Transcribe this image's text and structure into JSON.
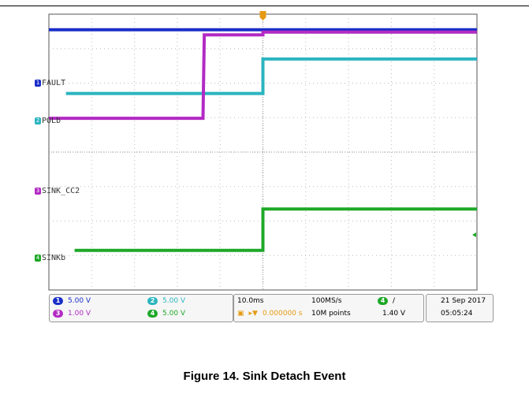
{
  "chart_data": {
    "type": "line",
    "title": "",
    "xlabel": "",
    "ylabel": "",
    "xlim": [
      0,
      10
    ],
    "ylim": [
      0,
      8
    ],
    "grid": true,
    "trigger_x": 5,
    "series": [
      {
        "name": "FAULT",
        "channel": "1",
        "color": "#1a2ec8",
        "points": [
          [
            0,
            7.55
          ],
          [
            10,
            7.55
          ]
        ]
      },
      {
        "name": "POL",
        "channel": "2",
        "color": "#2bb5c0",
        "points": [
          [
            0.4,
            5.7
          ],
          [
            5,
            5.7
          ],
          [
            5,
            6.7
          ],
          [
            10,
            6.7
          ]
        ]
      },
      {
        "name": "SINK_CC2",
        "channel": "3",
        "color": "#b22ac4",
        "points": [
          [
            0,
            4.98
          ],
          [
            3.6,
            4.98
          ],
          [
            3.63,
            7.4
          ],
          [
            5,
            7.4
          ],
          [
            5,
            7.48
          ],
          [
            10,
            7.48
          ]
        ]
      },
      {
        "name": "SINK",
        "channel": "4",
        "color": "#1ea828",
        "points": [
          [
            0.6,
            1.15
          ],
          [
            5,
            1.15
          ],
          [
            5,
            2.35
          ],
          [
            10,
            2.35
          ]
        ]
      }
    ],
    "channel_labels": [
      {
        "name": "FAULT",
        "text": "FAULT"
      },
      {
        "name": "POL",
        "text": "POLb"
      },
      {
        "name": "SINK_CC2",
        "text": "SINK_CC2"
      },
      {
        "name": "SINK",
        "text": "SINKb"
      }
    ]
  },
  "status": {
    "ch1": {
      "num": "1",
      "value": "5.00 V",
      "color": "#1a2ec8"
    },
    "ch2": {
      "num": "2",
      "value": "5.00 V",
      "color": "#2bb5c0"
    },
    "ch3": {
      "num": "3",
      "value": "1.00 V",
      "color": "#b22ac4"
    },
    "ch4": {
      "num": "4",
      "value": "5.00 V",
      "color": "#1ea828"
    },
    "timebase": "10.0ms",
    "sample_rate": "100MS/s",
    "trigger_offset": "0.000000 s",
    "record_length": "10M points",
    "trigger_channel": "4",
    "trigger_slope": "/",
    "trigger_level": "1.40 V",
    "date": "21 Sep 2017",
    "time": "05:05:24"
  },
  "caption": "Figure 14. Sink Detach Event"
}
